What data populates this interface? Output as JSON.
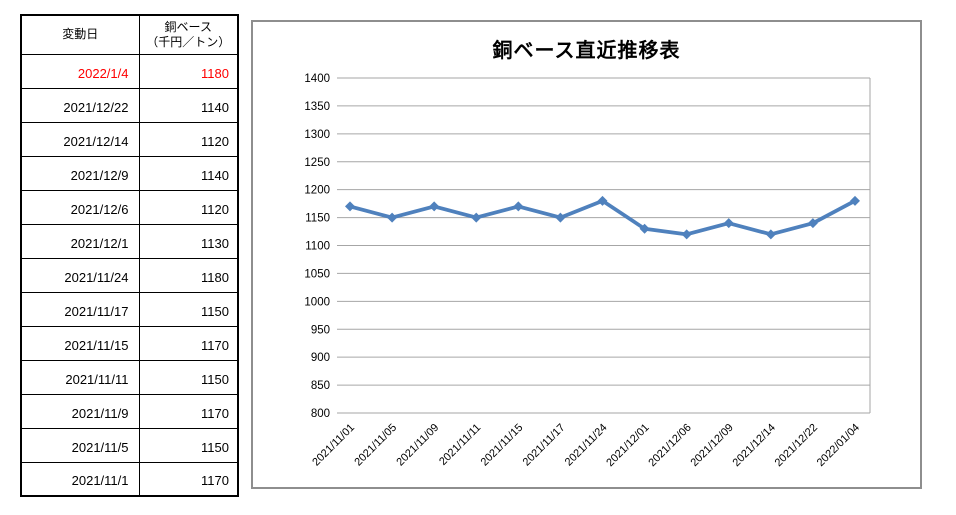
{
  "table": {
    "headers": {
      "date": "変動日",
      "value_line1": "銅ベース",
      "value_line2": "（千円／トン）"
    },
    "highlight_color": "#FF0000",
    "rows": [
      {
        "date": "2022/1/4",
        "value": "1180",
        "highlight": true
      },
      {
        "date": "2021/12/22",
        "value": "1140",
        "highlight": false
      },
      {
        "date": "2021/12/14",
        "value": "1120",
        "highlight": false
      },
      {
        "date": "2021/12/9",
        "value": "1140",
        "highlight": false
      },
      {
        "date": "2021/12/6",
        "value": "1120",
        "highlight": false
      },
      {
        "date": "2021/12/1",
        "value": "1130",
        "highlight": false
      },
      {
        "date": "2021/11/24",
        "value": "1180",
        "highlight": false
      },
      {
        "date": "2021/11/17",
        "value": "1150",
        "highlight": false
      },
      {
        "date": "2021/11/15",
        "value": "1170",
        "highlight": false
      },
      {
        "date": "2021/11/11",
        "value": "1150",
        "highlight": false
      },
      {
        "date": "2021/11/9",
        "value": "1170",
        "highlight": false
      },
      {
        "date": "2021/11/5",
        "value": "1150",
        "highlight": false
      },
      {
        "date": "2021/11/1",
        "value": "1170",
        "highlight": false
      }
    ]
  },
  "chart_data": {
    "type": "line",
    "title": "銅ベース直近推移表",
    "categories": [
      "2021/11/01",
      "2021/11/05",
      "2021/11/09",
      "2021/11/11",
      "2021/11/15",
      "2021/11/17",
      "2021/11/24",
      "2021/12/01",
      "2021/12/06",
      "2021/12/09",
      "2021/12/14",
      "2021/12/22",
      "2022/01/04"
    ],
    "values": [
      1170,
      1150,
      1170,
      1150,
      1170,
      1150,
      1180,
      1130,
      1120,
      1140,
      1120,
      1140,
      1180
    ],
    "xlabel": "",
    "ylabel": "",
    "ylim": [
      800,
      1400
    ],
    "ytick_step": 50,
    "grid": true,
    "legend": "none",
    "series_color": "#4F81BD",
    "marker": "diamond"
  }
}
